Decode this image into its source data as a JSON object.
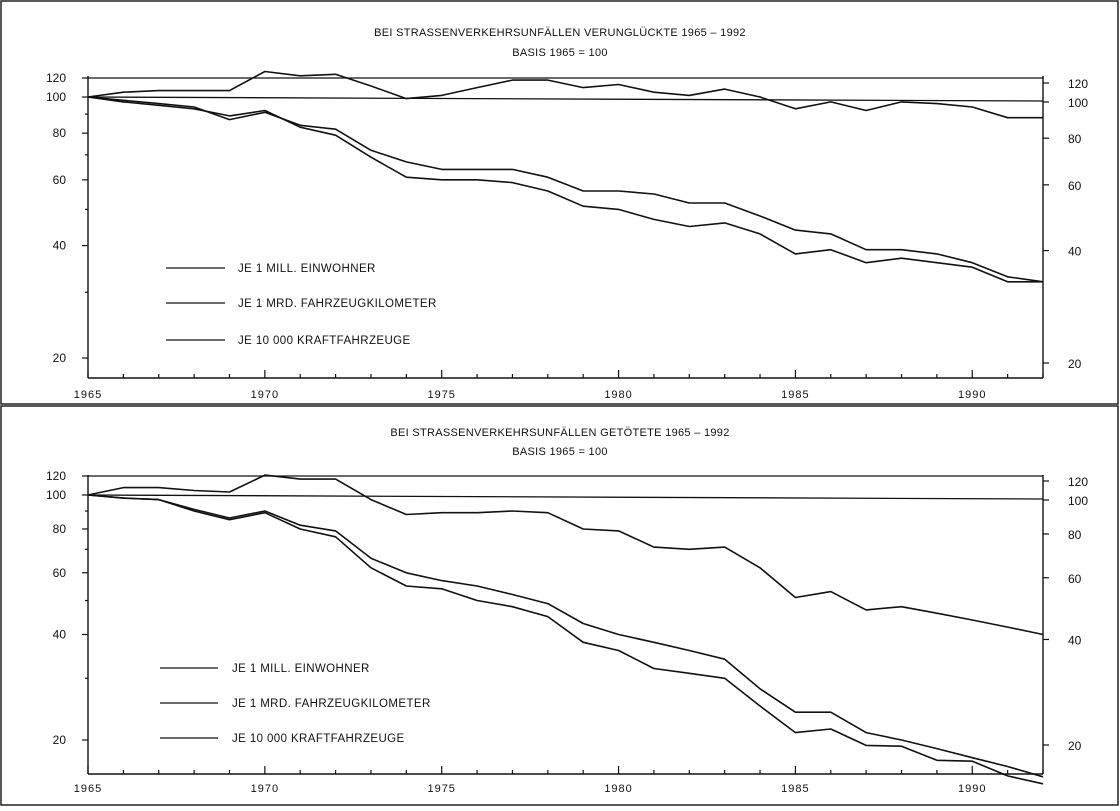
{
  "chart_data": [
    {
      "type": "line",
      "title": "BEI STRASSENVERKEHRSUNFÄLLEN VERUNGLÜCKTE 1965 – 1992",
      "subtitle": "BASIS 1965 = 100",
      "y_scale": "log",
      "ylim": [
        10,
        120
      ],
      "y_ticks": [
        "120",
        "100",
        "80",
        "60",
        "40",
        "20"
      ],
      "x_ticks": [
        "1965",
        "1970",
        "1975",
        "1980",
        "1985",
        "1990"
      ],
      "reference_lines": [
        100,
        120
      ],
      "x": [
        1965,
        1966,
        1967,
        1968,
        1969,
        1970,
        1971,
        1972,
        1973,
        1974,
        1975,
        1976,
        1977,
        1978,
        1979,
        1980,
        1981,
        1982,
        1983,
        1984,
        1985,
        1986,
        1987,
        1988,
        1989,
        1990,
        1991,
        1992
      ],
      "series": [
        {
          "name": "JE 1 MILL. EINWOHNER",
          "values": [
            100,
            103,
            104,
            104,
            104,
            117,
            114,
            115,
            107,
            99,
            101,
            106,
            111,
            111,
            106,
            108,
            103,
            101,
            105,
            100,
            93,
            97,
            92,
            97,
            96,
            94,
            88,
            88
          ]
        },
        {
          "name": "JE 1 MRD. FAHRZEUGKILOMETER",
          "values": [
            100,
            97,
            95,
            93,
            89,
            92,
            83,
            79,
            69,
            61,
            60,
            60,
            59,
            56,
            51,
            50,
            47,
            45,
            46,
            43,
            38,
            39,
            36,
            37,
            36,
            35,
            32,
            32
          ]
        },
        {
          "name": "JE 10 000 KRAFTFAHRZEUGE",
          "values": [
            100,
            98,
            96,
            94,
            87,
            91,
            84,
            82,
            72,
            67,
            64,
            64,
            64,
            61,
            56,
            56,
            55,
            52,
            52,
            48,
            44,
            43,
            39,
            39,
            38,
            36,
            33,
            32
          ]
        }
      ]
    },
    {
      "type": "line",
      "title": "BEI STRASSENVERKEHRSUNFÄLLEN GETÖTETE 1965 – 1992",
      "subtitle": "BASIS 1965 = 100",
      "y_scale": "log",
      "ylim": [
        12,
        120
      ],
      "y_ticks": [
        "120",
        "100",
        "80",
        "60",
        "40",
        "20"
      ],
      "x_ticks": [
        "1965",
        "1970",
        "1975",
        "1980",
        "1985",
        "1990"
      ],
      "reference_lines": [
        100,
        120
      ],
      "x": [
        1965,
        1966,
        1967,
        1968,
        1969,
        1970,
        1971,
        1972,
        1973,
        1974,
        1975,
        1976,
        1977,
        1978,
        1979,
        1980,
        1981,
        1982,
        1983,
        1984,
        1985,
        1986,
        1987,
        1988,
        1989,
        1990,
        1991,
        1992
      ],
      "series": [
        {
          "name": "JE 1 MILL. EINWOHNER",
          "values": [
            100,
            105,
            105,
            103,
            102,
            114,
            111,
            111,
            97,
            88,
            89,
            89,
            90,
            89,
            80,
            79,
            71,
            70,
            71,
            62,
            51,
            53,
            47,
            48,
            46,
            44,
            42,
            40
          ]
        },
        {
          "name": "JE 1 MRD. FAHRZEUGKILOMETER",
          "values": [
            100,
            98,
            97,
            90,
            85,
            89,
            80,
            76,
            62,
            55,
            54,
            50,
            48,
            45,
            38,
            36,
            32,
            31,
            30,
            25,
            21,
            21.5,
            19.3,
            19.2,
            17.5,
            17.4,
            15.8,
            15
          ]
        },
        {
          "name": "JE 10 000 KRAFTFAHRZEUGE",
          "values": [
            100,
            98,
            97,
            91,
            86,
            90,
            82,
            79,
            66,
            60,
            57,
            55,
            52,
            49,
            43,
            40,
            38,
            36,
            34,
            28,
            24,
            24,
            21,
            20,
            18.9,
            17.8,
            16.8,
            15.7
          ]
        }
      ]
    }
  ]
}
